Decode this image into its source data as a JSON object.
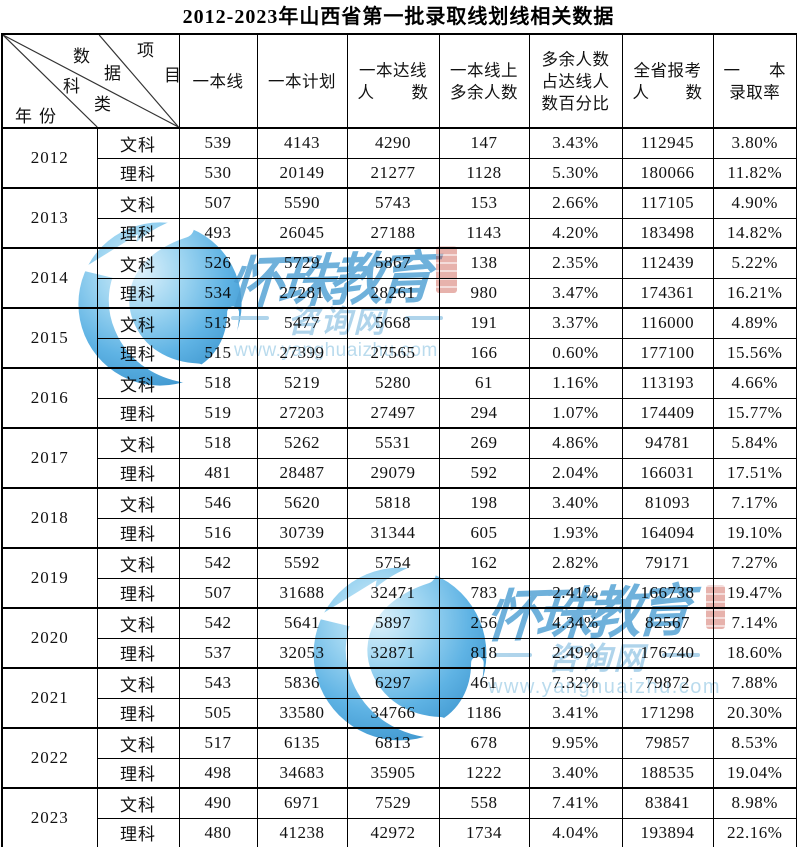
{
  "title": "2012-2023年山西省第一批录取线划线相关数据",
  "table": {
    "corner": {
      "data_label": "数据",
      "item_label": "项目",
      "category_label": "科类",
      "year_label": "年份"
    },
    "headers": [
      {
        "lines": [
          "一本线"
        ]
      },
      {
        "lines": [
          "一本计划"
        ]
      },
      {
        "lines": [
          "一本达线",
          [
            "人",
            "数"
          ]
        ]
      },
      {
        "lines": [
          "一本线上",
          "多余人数"
        ]
      },
      {
        "lines": [
          "多余人数",
          "占达线人",
          "数百分比"
        ]
      },
      {
        "lines": [
          "全省报考",
          [
            "人",
            "数"
          ]
        ]
      },
      {
        "lines": [
          [
            "一",
            "本"
          ],
          "录取率"
        ]
      }
    ],
    "groups": [
      {
        "year": "2012",
        "rows": [
          {
            "track": "文科",
            "values": [
              "539",
              "4143",
              "4290",
              "147",
              "3.43%",
              "112945",
              "3.80%"
            ]
          },
          {
            "track": "理科",
            "values": [
              "530",
              "20149",
              "21277",
              "1128",
              "5.30%",
              "180066",
              "11.82%"
            ]
          }
        ]
      },
      {
        "year": "2013",
        "rows": [
          {
            "track": "文科",
            "values": [
              "507",
              "5590",
              "5743",
              "153",
              "2.66%",
              "117105",
              "4.90%"
            ]
          },
          {
            "track": "理科",
            "values": [
              "493",
              "26045",
              "27188",
              "1143",
              "4.20%",
              "183498",
              "14.82%"
            ]
          }
        ]
      },
      {
        "year": "2014",
        "rows": [
          {
            "track": "文科",
            "values": [
              "526",
              "5729",
              "5867",
              "138",
              "2.35%",
              "112439",
              "5.22%"
            ]
          },
          {
            "track": "理科",
            "values": [
              "534",
              "27281",
              "28261",
              "980",
              "3.47%",
              "174361",
              "16.21%"
            ]
          }
        ]
      },
      {
        "year": "2015",
        "rows": [
          {
            "track": "文科",
            "values": [
              "513",
              "5477",
              "5668",
              "191",
              "3.37%",
              "116000",
              "4.89%"
            ]
          },
          {
            "track": "理科",
            "values": [
              "515",
              "27399",
              "27565",
              "166",
              "0.60%",
              "177100",
              "15.56%"
            ]
          }
        ]
      },
      {
        "year": "2016",
        "rows": [
          {
            "track": "文科",
            "values": [
              "518",
              "5219",
              "5280",
              "61",
              "1.16%",
              "113193",
              "4.66%"
            ]
          },
          {
            "track": "理科",
            "values": [
              "519",
              "27203",
              "27497",
              "294",
              "1.07%",
              "174409",
              "15.77%"
            ]
          }
        ]
      },
      {
        "year": "2017",
        "rows": [
          {
            "track": "文科",
            "values": [
              "518",
              "5262",
              "5531",
              "269",
              "4.86%",
              "94781",
              "5.84%"
            ]
          },
          {
            "track": "理科",
            "values": [
              "481",
              "28487",
              "29079",
              "592",
              "2.04%",
              "166031",
              "17.51%"
            ]
          }
        ]
      },
      {
        "year": "2018",
        "rows": [
          {
            "track": "文科",
            "values": [
              "546",
              "5620",
              "5818",
              "198",
              "3.40%",
              "81093",
              "7.17%"
            ]
          },
          {
            "track": "理科",
            "values": [
              "516",
              "30739",
              "31344",
              "605",
              "1.93%",
              "164094",
              "19.10%"
            ]
          }
        ]
      },
      {
        "year": "2019",
        "rows": [
          {
            "track": "文科",
            "values": [
              "542",
              "5592",
              "5754",
              "162",
              "2.82%",
              "79171",
              "7.27%"
            ]
          },
          {
            "track": "理科",
            "values": [
              "507",
              "31688",
              "32471",
              "783",
              "2.41%",
              "166738",
              "19.47%"
            ]
          }
        ]
      },
      {
        "year": "2020",
        "rows": [
          {
            "track": "文科",
            "values": [
              "542",
              "5641",
              "5897",
              "256",
              "4.34%",
              "82567",
              "7.14%"
            ]
          },
          {
            "track": "理科",
            "values": [
              "537",
              "32053",
              "32871",
              "818",
              "2.49%",
              "176740",
              "18.60%"
            ]
          }
        ]
      },
      {
        "year": "2021",
        "rows": [
          {
            "track": "文科",
            "values": [
              "543",
              "5836",
              "6297",
              "461",
              "7.32%",
              "79872",
              "7.88%"
            ]
          },
          {
            "track": "理科",
            "values": [
              "505",
              "33580",
              "34766",
              "1186",
              "3.41%",
              "171298",
              "20.30%"
            ]
          }
        ]
      },
      {
        "year": "2022",
        "rows": [
          {
            "track": "文科",
            "values": [
              "517",
              "6135",
              "6813",
              "678",
              "9.95%",
              "79857",
              "8.53%"
            ]
          },
          {
            "track": "理科",
            "values": [
              "498",
              "34683",
              "35905",
              "1222",
              "3.40%",
              "188535",
              "19.04%"
            ]
          }
        ]
      },
      {
        "year": "2023",
        "rows": [
          {
            "track": "文科",
            "values": [
              "490",
              "6971",
              "7529",
              "558",
              "7.41%",
              "83841",
              "8.98%"
            ]
          },
          {
            "track": "理科",
            "values": [
              "480",
              "41238",
              "42972",
              "1734",
              "4.04%",
              "193894",
              "22.16%"
            ]
          }
        ]
      }
    ]
  },
  "watermark": {
    "brand": "怀珠教育",
    "site": "咨询网",
    "url": "www.yanghuaizhu.com",
    "colors": {
      "calligraphy": "#4c9ed2",
      "subline": "#9ccae6",
      "url": "#b3d8ec",
      "globe_light": "#a8d9f2",
      "globe_dark": "#3f97cf",
      "seal_red": "#c23a2b"
    }
  }
}
